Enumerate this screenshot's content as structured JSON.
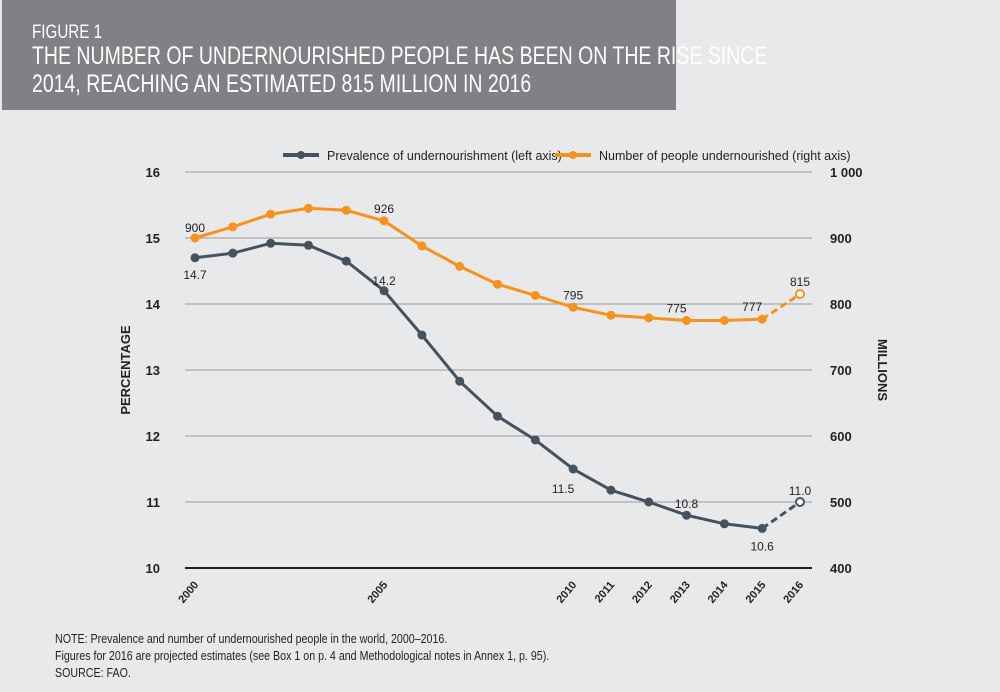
{
  "header": {
    "figure": "FIGURE 1",
    "title_line1": "THE NUMBER OF UNDERNOURISHED PEOPLE HAS BEEN ON THE RISE SINCE",
    "title_line2": "2014, REACHING AN ESTIMATED 815 MILLION IN 2016"
  },
  "chart_data": {
    "type": "line",
    "x": [
      2000,
      2001,
      2002,
      2003,
      2004,
      2005,
      2006,
      2007,
      2008,
      2009,
      2010,
      2011,
      2012,
      2013,
      2014,
      2015,
      2016
    ],
    "xtick_labels": [
      "2000",
      "2005",
      "2010",
      "2011",
      "2012",
      "2013",
      "2014",
      "2015",
      "2016"
    ],
    "ylabel_left": "PERCENTAGE",
    "ylabel_right": "MILLIONS",
    "ylim_left": [
      10,
      16
    ],
    "ylim_right": [
      400,
      1000
    ],
    "yticks_left": [
      "10",
      "11",
      "12",
      "13",
      "14",
      "15",
      "16"
    ],
    "yticks_right": [
      "400",
      "500",
      "600",
      "700",
      "800",
      "900",
      "1 000"
    ],
    "grid": "horizontal",
    "legend": "top",
    "series": [
      {
        "name": "Prevalence of undernourishment  (left axis)",
        "axis": "left",
        "color": "#46525d",
        "values": [
          14.7,
          14.77,
          14.92,
          14.89,
          14.65,
          14.2,
          13.53,
          12.83,
          12.3,
          11.94,
          11.5,
          11.18,
          11.0,
          10.8,
          10.67,
          10.6,
          11.0
        ],
        "projected_from": 2015,
        "data_labels": [
          {
            "x": 2000,
            "text": "14.7"
          },
          {
            "x": 2005,
            "text": "14.2"
          },
          {
            "x": 2010,
            "text": "11.5"
          },
          {
            "x": 2013,
            "text": "10.8"
          },
          {
            "x": 2015,
            "text": "10.6"
          },
          {
            "x": 2016,
            "text": "11.0"
          }
        ]
      },
      {
        "name": "Number of people undernourished (right axis)",
        "axis": "right",
        "color": "#f7921e",
        "values": [
          900,
          917,
          936,
          945,
          942,
          926,
          888,
          857,
          830,
          813,
          795,
          783,
          779,
          775,
          775,
          777,
          815
        ],
        "projected_from": 2015,
        "data_labels": [
          {
            "x": 2000,
            "text": "900"
          },
          {
            "x": 2005,
            "text": "926"
          },
          {
            "x": 2010,
            "text": "795"
          },
          {
            "x": 2013,
            "text": "775"
          },
          {
            "x": 2015,
            "text": "777"
          },
          {
            "x": 2016,
            "text": "815"
          }
        ]
      }
    ]
  },
  "notes": {
    "line1": "NOTE: Prevalence and number of undernourished people in the world, 2000–2016.",
    "line2": "Figures for 2016 are projected estimates (see Box 1 on p. 4 and Methodological notes in Annex 1, p. 95).",
    "line3": "SOURCE: FAO."
  }
}
